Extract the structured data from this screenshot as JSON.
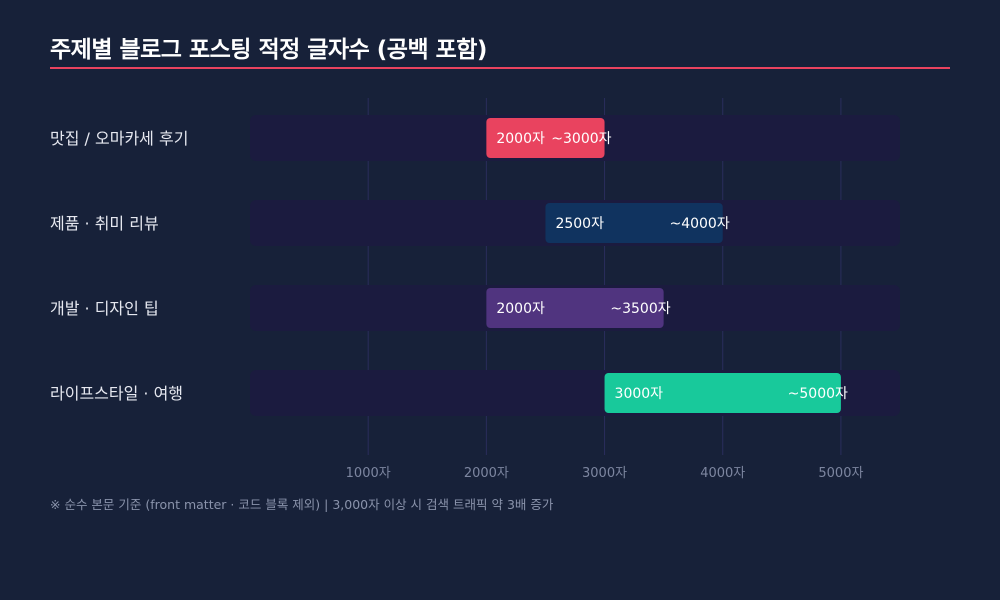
{
  "chart_data": {
    "type": "bar",
    "orientation": "horizontal-range",
    "title": "주제별 블로그 포스팅 적정 글자수 (공백 포함)",
    "categories": [
      "맛집 / 오마카세 후기",
      "제품 · 취미 리뷰",
      "개발 · 디자인 팁",
      "라이프스타일 · 여행"
    ],
    "ranges": [
      [
        2000,
        3000
      ],
      [
        2500,
        4000
      ],
      [
        2000,
        3500
      ],
      [
        3000,
        5000
      ]
    ],
    "start_labels": [
      "2000자",
      "2500자",
      "2000자",
      "3000자"
    ],
    "end_labels": [
      "~3000자",
      "~4000자",
      "~3500자",
      "~5000자"
    ],
    "colors": [
      "#e9435f",
      "#10335f",
      "#50347f",
      "#18c99b"
    ],
    "xlim": [
      0,
      5500
    ],
    "xticks": [
      1000,
      2000,
      3000,
      4000,
      5000
    ],
    "xtick_labels": [
      "1000자",
      "2000자",
      "3000자",
      "4000자",
      "5000자"
    ],
    "grid": true,
    "note": "※ 순수 본문 기준 (front matter · 코드 블록 제외) | 3,000자 이상 시 검색 트래픽 약 3배 증가"
  }
}
